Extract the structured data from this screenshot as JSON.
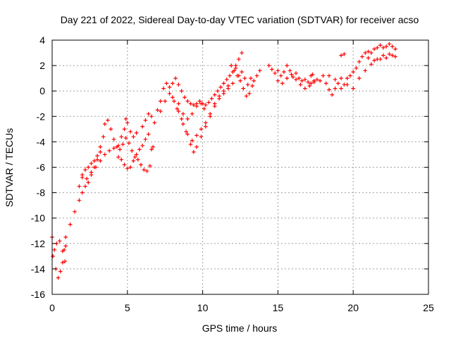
{
  "chart_data": {
    "type": "scatter",
    "title": "Day 221 of 2022, Sidereal Day-to-day VTEC variation (SDTVAR) for receiver acso",
    "xlabel": "GPS time / hours",
    "ylabel": "SDTVAR / TECUs",
    "xlim": [
      0,
      25
    ],
    "ylim": [
      -16,
      4
    ],
    "x_ticks": [
      0,
      5,
      10,
      15,
      20,
      25
    ],
    "y_ticks": [
      -16,
      -14,
      -12,
      -10,
      -8,
      -6,
      -4,
      -2,
      0,
      2,
      4
    ],
    "x_tick_labels": [
      "0",
      "5",
      "10",
      "15",
      "20",
      "25"
    ],
    "y_tick_labels": [
      "-16",
      "-14",
      "-12",
      "-10",
      "-8",
      "-6",
      "-4",
      "-2",
      "0",
      "2",
      "4"
    ],
    "grid": true,
    "marker": "plus",
    "series": [
      {
        "name": "SDTVAR",
        "color": "#ff0000",
        "tracks": [
          [
            [
              0.0,
              -11.5
            ],
            [
              0.15,
              -12.5
            ],
            [
              0.25,
              -14.0
            ],
            [
              0.4,
              -14.7
            ],
            [
              0.55,
              -14.2
            ],
            [
              0.7,
              -13.5
            ],
            [
              0.8,
              -12.5
            ],
            [
              0.9,
              -11.5
            ]
          ],
          [
            [
              0.05,
              -13.0
            ],
            [
              0.3,
              -12.0
            ],
            [
              0.5,
              -11.8
            ],
            [
              0.7,
              -12.6
            ],
            [
              0.85,
              -13.4
            ],
            [
              0.9,
              -12.2
            ]
          ],
          [
            [
              1.2,
              -10.5
            ],
            [
              1.5,
              -9.5
            ],
            [
              1.8,
              -8.6
            ],
            [
              2.0,
              -8.0
            ],
            [
              2.2,
              -7.5
            ],
            [
              2.4,
              -7.2
            ],
            [
              2.6,
              -6.6
            ],
            [
              2.8,
              -6.0
            ],
            [
              3.0,
              -5.4
            ],
            [
              3.2,
              -4.8
            ],
            [
              3.4,
              -3.6
            ],
            [
              3.5,
              -2.6
            ],
            [
              3.7,
              -2.3
            ],
            [
              3.9,
              -3.0
            ],
            [
              4.1,
              -3.8
            ],
            [
              4.3,
              -4.4
            ],
            [
              4.5,
              -4.6
            ],
            [
              4.7,
              -4.2
            ],
            [
              4.9,
              -3.7
            ],
            [
              5.1,
              -4.1
            ],
            [
              5.3,
              -4.7
            ],
            [
              5.5,
              -5.2
            ],
            [
              5.7,
              -5.4
            ],
            [
              5.9,
              -5.8
            ],
            [
              6.1,
              -6.2
            ],
            [
              6.3,
              -6.3
            ],
            [
              6.5,
              -5.9
            ]
          ],
          [
            [
              1.8,
              -7.5
            ],
            [
              2.0,
              -6.8
            ],
            [
              2.2,
              -6.2
            ],
            [
              2.4,
              -6.0
            ],
            [
              2.6,
              -5.7
            ],
            [
              2.8,
              -5.5
            ],
            [
              3.0,
              -5.1
            ],
            [
              3.2,
              -4.4
            ]
          ],
          [
            [
              2.0,
              -6.6
            ],
            [
              2.3,
              -6.9
            ],
            [
              2.6,
              -6.4
            ],
            [
              2.9,
              -6.0
            ],
            [
              3.2,
              -5.5
            ],
            [
              3.5,
              -5.0
            ],
            [
              3.8,
              -4.7
            ],
            [
              4.1,
              -4.5
            ],
            [
              4.4,
              -4.3
            ]
          ],
          [
            [
              4.4,
              -5.2
            ],
            [
              4.6,
              -5.4
            ],
            [
              4.8,
              -5.8
            ],
            [
              5.0,
              -6.1
            ],
            [
              5.2,
              -6.0
            ],
            [
              5.4,
              -5.5
            ],
            [
              5.6,
              -5.0
            ],
            [
              5.8,
              -4.6
            ],
            [
              6.0,
              -4.3
            ],
            [
              6.2,
              -3.8
            ],
            [
              6.4,
              -3.4
            ]
          ],
          [
            [
              4.6,
              -3.6
            ],
            [
              4.8,
              -3.0
            ],
            [
              4.9,
              -2.2
            ],
            [
              5.0,
              -2.5
            ],
            [
              5.2,
              -3.2
            ],
            [
              5.4,
              -3.6
            ],
            [
              5.6,
              -3.3
            ]
          ],
          [
            [
              6.0,
              -2.8
            ],
            [
              6.2,
              -2.3
            ],
            [
              6.4,
              -1.8
            ],
            [
              6.6,
              -2.0
            ],
            [
              6.8,
              -2.5
            ],
            [
              7.0,
              -1.5
            ],
            [
              7.2,
              -0.8
            ],
            [
              7.4,
              0.2
            ],
            [
              7.6,
              0.6
            ],
            [
              7.8,
              0.3
            ],
            [
              8.0,
              0.6
            ],
            [
              8.2,
              1.0
            ],
            [
              8.4,
              0.5
            ],
            [
              8.6,
              0.0
            ],
            [
              8.8,
              -0.5
            ],
            [
              9.0,
              -0.8
            ],
            [
              9.2,
              -1.0
            ],
            [
              9.4,
              -1.1
            ],
            [
              9.6,
              -1.0
            ],
            [
              9.8,
              -0.8
            ],
            [
              10.0,
              -1.0
            ],
            [
              10.2,
              -1.1
            ],
            [
              10.4,
              -0.9
            ],
            [
              10.6,
              -0.6
            ],
            [
              10.8,
              -0.3
            ],
            [
              11.0,
              0.0
            ],
            [
              11.2,
              0.3
            ],
            [
              11.4,
              0.6
            ],
            [
              11.6,
              0.9
            ],
            [
              11.8,
              1.2
            ],
            [
              12.0,
              1.5
            ],
            [
              12.2,
              2.0
            ],
            [
              12.4,
              2.5
            ],
            [
              12.6,
              3.0
            ]
          ],
          [
            [
              8.0,
              -0.5
            ],
            [
              8.3,
              -1.4
            ],
            [
              8.6,
              -2.2
            ],
            [
              8.9,
              -3.2
            ],
            [
              9.2,
              -4.2
            ],
            [
              9.4,
              -4.8
            ],
            [
              9.6,
              -4.4
            ],
            [
              9.9,
              -3.6
            ],
            [
              10.2,
              -2.8
            ],
            [
              10.5,
              -2.0
            ],
            [
              10.8,
              -1.2
            ],
            [
              11.1,
              -0.6
            ],
            [
              11.4,
              -0.2
            ],
            [
              11.7,
              0.2
            ],
            [
              12.0,
              0.6
            ]
          ],
          [
            [
              7.2,
              -1.6
            ],
            [
              7.5,
              -0.8
            ],
            [
              7.8,
              -0.2
            ],
            [
              8.1,
              -0.8
            ],
            [
              8.4,
              -1.6
            ],
            [
              8.7,
              -2.6
            ],
            [
              9.0,
              -3.4
            ],
            [
              9.3,
              -3.9
            ],
            [
              9.6,
              -3.5
            ],
            [
              9.9,
              -3.0
            ],
            [
              10.2,
              -2.5
            ],
            [
              10.5,
              -1.8
            ],
            [
              10.8,
              -1.0
            ],
            [
              11.1,
              -0.4
            ],
            [
              11.4,
              0.0
            ],
            [
              11.7,
              0.4
            ]
          ],
          [
            [
              8.4,
              -1.0
            ],
            [
              8.7,
              -1.8
            ],
            [
              9.0,
              -2.2
            ],
            [
              9.3,
              -1.8
            ],
            [
              9.6,
              -1.2
            ],
            [
              9.9,
              -1.0
            ],
            [
              10.1,
              -1.4
            ]
          ],
          [
            [
              12.2,
              1.8
            ],
            [
              12.4,
              1.2
            ],
            [
              12.6,
              1.5
            ],
            [
              12.8,
              1.0
            ],
            [
              13.0,
              0.5
            ],
            [
              13.2,
              1.0
            ],
            [
              13.4,
              0.8
            ],
            [
              13.6,
              1.2
            ],
            [
              13.8,
              1.6
            ]
          ],
          [
            [
              11.9,
              2.0
            ],
            [
              12.1,
              1.6
            ],
            [
              12.3,
              1.2
            ],
            [
              12.5,
              0.8
            ],
            [
              12.7,
              0.2
            ],
            [
              12.9,
              -0.4
            ],
            [
              13.1,
              -0.2
            ],
            [
              13.3,
              0.4
            ]
          ],
          [
            [
              14.4,
              2.0
            ],
            [
              14.6,
              1.7
            ],
            [
              14.8,
              1.4
            ],
            [
              15.0,
              1.6
            ],
            [
              15.2,
              1.2
            ],
            [
              15.4,
              1.5
            ],
            [
              15.6,
              2.0
            ],
            [
              15.8,
              1.6
            ],
            [
              16.0,
              1.1
            ],
            [
              16.2,
              1.4
            ],
            [
              16.4,
              1.0
            ],
            [
              16.6,
              0.8
            ],
            [
              16.8,
              0.9
            ],
            [
              17.0,
              0.7
            ],
            [
              17.2,
              0.6
            ],
            [
              17.4,
              0.7
            ],
            [
              17.6,
              0.9
            ],
            [
              17.8,
              0.8
            ]
          ],
          [
            [
              15.0,
              0.8
            ],
            [
              15.3,
              0.6
            ],
            [
              15.6,
              1.0
            ],
            [
              15.9,
              1.3
            ],
            [
              16.2,
              0.9
            ],
            [
              16.5,
              0.5
            ],
            [
              16.8,
              0.2
            ],
            [
              17.1,
              0.4
            ],
            [
              17.4,
              0.8
            ]
          ],
          [
            [
              18.0,
              1.2
            ],
            [
              18.2,
              0.6
            ],
            [
              18.4,
              0.1
            ],
            [
              18.6,
              -0.3
            ],
            [
              18.8,
              0.2
            ],
            [
              19.0,
              0.6
            ],
            [
              19.2,
              0.2
            ],
            [
              19.4,
              0.5
            ],
            [
              19.6,
              1.0
            ],
            [
              19.8,
              1.2
            ],
            [
              20.0,
              1.5
            ],
            [
              20.2,
              1.8
            ],
            [
              20.4,
              2.3
            ],
            [
              20.6,
              2.7
            ],
            [
              20.8,
              3.0
            ],
            [
              21.0,
              3.1
            ],
            [
              21.2,
              3.0
            ],
            [
              21.4,
              3.3
            ],
            [
              21.6,
              3.4
            ],
            [
              21.8,
              3.6
            ],
            [
              22.0,
              3.4
            ],
            [
              22.2,
              3.5
            ],
            [
              22.4,
              3.7
            ],
            [
              22.6,
              3.5
            ],
            [
              22.8,
              3.3
            ]
          ],
          [
            [
              18.4,
              1.2
            ],
            [
              18.8,
              0.9
            ],
            [
              19.2,
              1.0
            ],
            [
              19.6,
              0.5
            ],
            [
              20.0,
              0.2
            ],
            [
              20.4,
              1.0
            ],
            [
              20.8,
              1.6
            ],
            [
              21.2,
              2.1
            ],
            [
              21.6,
              2.5
            ],
            [
              22.0,
              2.8
            ],
            [
              22.4,
              2.9
            ],
            [
              22.8,
              2.7
            ]
          ],
          [
            [
              21.0,
              2.6
            ],
            [
              21.4,
              2.4
            ],
            [
              21.8,
              2.5
            ],
            [
              22.2,
              2.6
            ],
            [
              22.6,
              2.8
            ]
          ],
          [
            [
              19.2,
              2.8
            ],
            [
              19.4,
              2.9
            ]
          ],
          [
            [
              6.6,
              -4.6
            ],
            [
              6.7,
              -4.4
            ]
          ],
          [
            [
              17.2,
              1.2
            ],
            [
              17.3,
              1.3
            ]
          ]
        ]
      }
    ]
  }
}
